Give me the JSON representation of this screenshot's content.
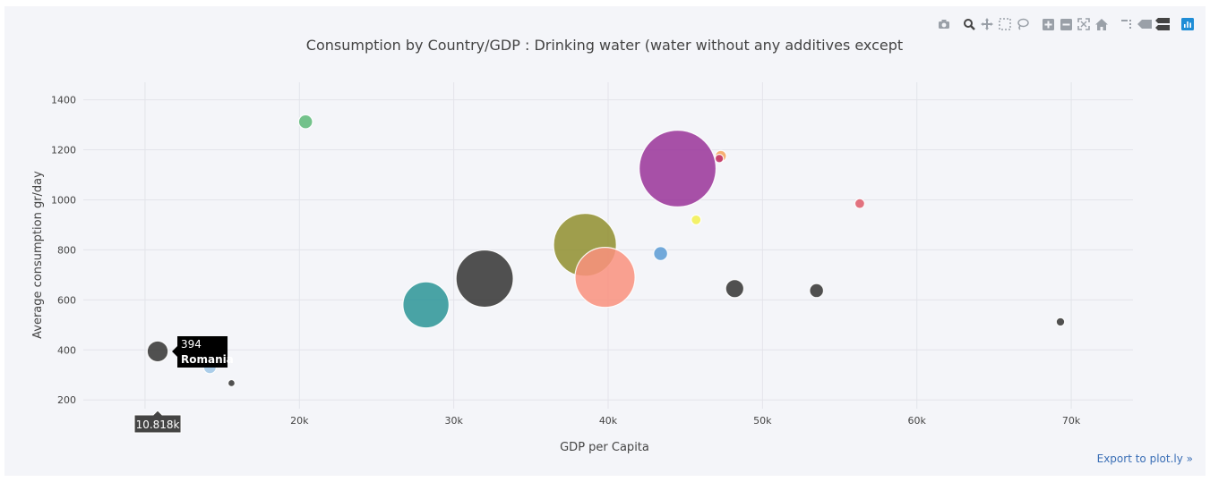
{
  "modebar": {
    "icons": [
      "camera-icon",
      "zoom-icon",
      "pan-icon",
      "box-select-icon",
      "lasso-icon",
      "zoom-in-icon",
      "zoom-out-icon",
      "autoscale-icon",
      "reset-axes-icon",
      "spike-lines-icon",
      "hover-closest-icon",
      "hover-compare-icon",
      "plotly-logo-icon"
    ]
  },
  "export_link": "Export to plot.ly »",
  "chart_data": {
    "type": "scatter",
    "title": "Consumption by Country/GDP : Drinking water (water without any additives except",
    "xlabel": "GDP per Capita",
    "ylabel": "Average consumption gr/day",
    "xlim": [
      6000,
      74000
    ],
    "ylim": [
      165,
      1470
    ],
    "x_ticks": [
      10000,
      20000,
      30000,
      40000,
      50000,
      60000,
      70000
    ],
    "x_tick_labels": [
      "10k",
      "20k",
      "30k",
      "40k",
      "50k",
      "60k",
      "70k"
    ],
    "y_ticks": [
      200,
      400,
      600,
      800,
      1000,
      1200,
      1400
    ],
    "y_tick_labels": [
      "200",
      "400",
      "600",
      "800",
      "1000",
      "1200",
      "1400"
    ],
    "grid": true,
    "bubble_size_meaning": "relative bubble size (marker area)",
    "points": [
      {
        "x": 20400,
        "y": 1312,
        "size": 10,
        "color": "#5cb878"
      },
      {
        "x": 44500,
        "y": 1125,
        "size": 55,
        "color": "#993399"
      },
      {
        "x": 47300,
        "y": 1175,
        "size": 8,
        "color": "#f6a35b"
      },
      {
        "x": 47200,
        "y": 1165,
        "size": 6,
        "color": "#c0306a"
      },
      {
        "x": 56300,
        "y": 985,
        "size": 7,
        "color": "#de5a6a"
      },
      {
        "x": 45700,
        "y": 920,
        "size": 7,
        "color": "#f2f04f"
      },
      {
        "x": 38500,
        "y": 820,
        "size": 45,
        "color": "#8f8e2e"
      },
      {
        "x": 43400,
        "y": 785,
        "size": 10,
        "color": "#5b9bd5"
      },
      {
        "x": 39800,
        "y": 690,
        "size": 43,
        "color": "#f9907e"
      },
      {
        "x": 32000,
        "y": 685,
        "size": 41,
        "color": "#333333"
      },
      {
        "x": 28200,
        "y": 580,
        "size": 33,
        "color": "#2a9496"
      },
      {
        "x": 48200,
        "y": 645,
        "size": 13,
        "color": "#333333"
      },
      {
        "x": 53500,
        "y": 637,
        "size": 10,
        "color": "#333333"
      },
      {
        "x": 69300,
        "y": 512,
        "size": 6,
        "color": "#333333"
      },
      {
        "x": 14200,
        "y": 330,
        "size": 9,
        "color": "#9ec5e6"
      },
      {
        "x": 10818,
        "y": 394,
        "size": 15,
        "color": "#333333"
      },
      {
        "x": 15600,
        "y": 267,
        "size": 5,
        "color": "#333333"
      }
    ],
    "hover": {
      "x_label": "10.818k",
      "y_value": "394",
      "name": "Romania",
      "x": 10818,
      "y": 394
    }
  }
}
